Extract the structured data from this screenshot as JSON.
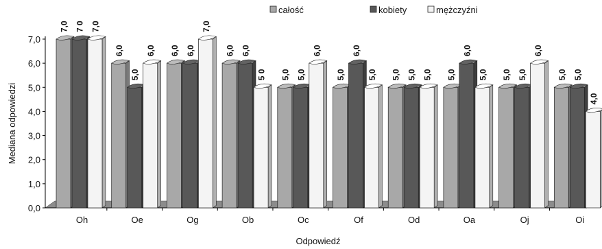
{
  "chart_data": {
    "type": "bar",
    "xlabel": "Odpowiedź",
    "ylabel": "Mediana odpowiedzi",
    "ylim": [
      0,
      7
    ],
    "y_ticks": [
      "0,0",
      "1,0",
      "2,0",
      "3,0",
      "4,0",
      "5,0",
      "6,0",
      "7,0"
    ],
    "categories": [
      "Oh",
      "Oe",
      "Og",
      "Ob",
      "Oc",
      "Of",
      "Od",
      "Oa",
      "Oj",
      "Oi"
    ],
    "series": [
      {
        "name": "całość",
        "values": [
          7,
          6,
          6,
          6,
          5,
          5,
          5,
          5,
          5,
          5
        ],
        "labels": [
          "7,0",
          "6,0",
          "6,0",
          "6,0",
          "5,0",
          "5,0",
          "5,0",
          "5,0",
          "5,0",
          "5,0"
        ]
      },
      {
        "name": "kobiety",
        "values": [
          7,
          5,
          6,
          6,
          5,
          6,
          5,
          6,
          5,
          5
        ],
        "labels": [
          "7 0",
          "5,0",
          "6,0",
          "6,0",
          "5,0",
          "6,0",
          "5,0",
          "6,0",
          "5,0",
          "5,0"
        ]
      },
      {
        "name": "mężczyźni",
        "values": [
          7,
          6,
          7,
          5,
          6,
          5,
          5,
          5,
          6,
          4
        ],
        "labels": [
          "7,0",
          "6,0",
          "7,0",
          "5 0",
          "6,0",
          "5,0",
          "5,0",
          "5,0",
          "6,0",
          "4,0"
        ]
      }
    ],
    "colors": {
      "całość": "#a8a8a8",
      "kobiety": "#585858",
      "mężczyźni": "#f4f4f4",
      "floor": "#8c8c8c"
    },
    "legend_position": "top",
    "grid": false
  }
}
